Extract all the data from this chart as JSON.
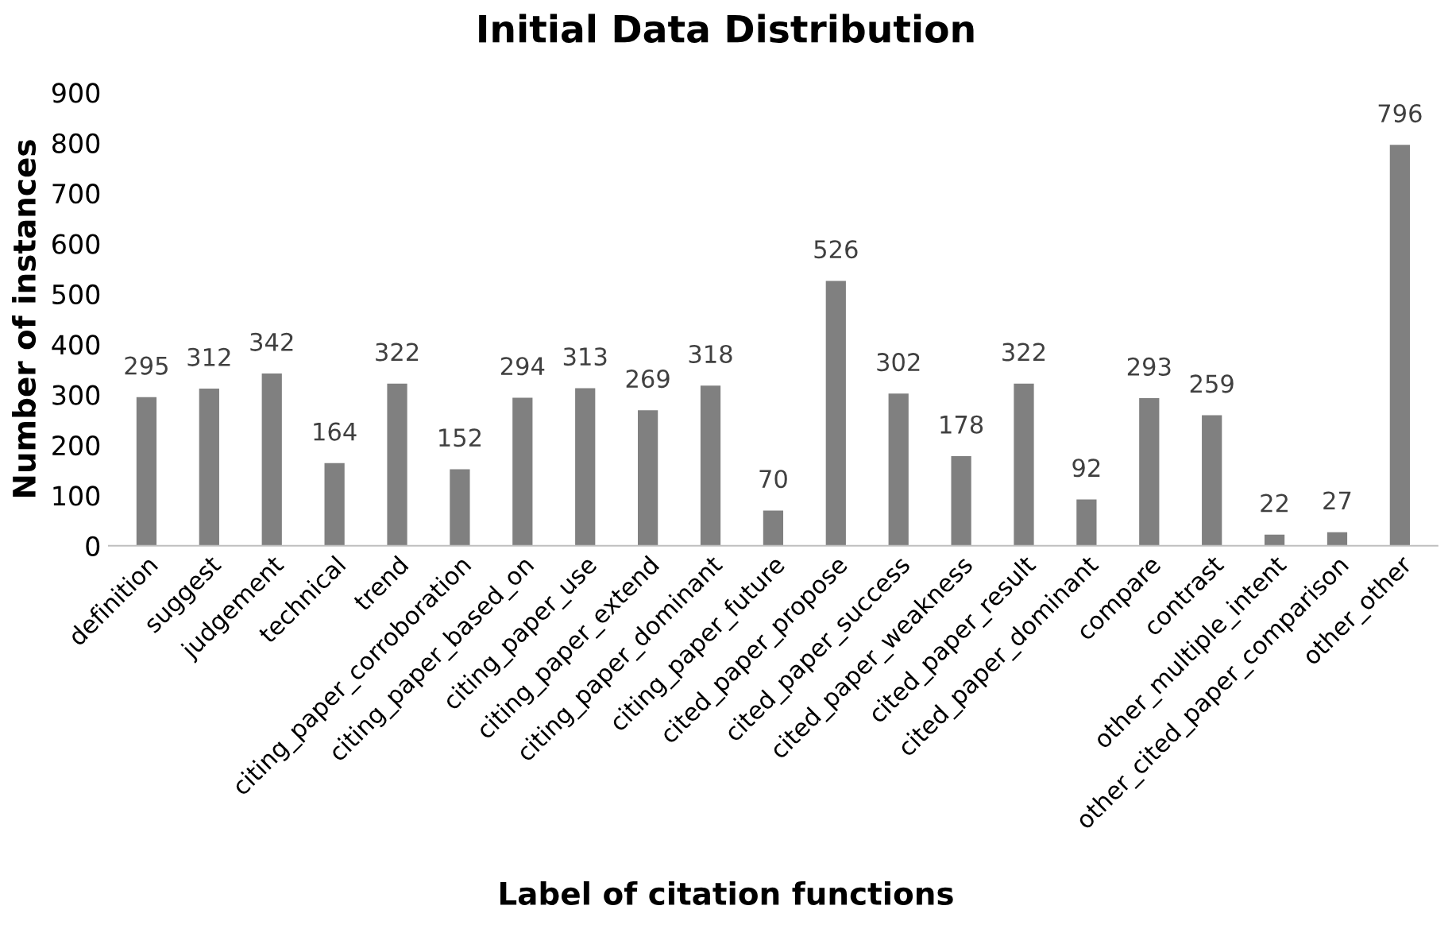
{
  "chart_data": {
    "type": "bar",
    "title": "Initial Data Distribution",
    "xlabel": "Label of citation functions",
    "ylabel": "Number of instances",
    "categories": [
      "definition",
      "suggest",
      "judgement",
      "technical",
      "trend",
      "citing_paper_corroboration",
      "citing_paper_based_on",
      "citing_paper_use",
      "citing_paper_extend",
      "citing_paper_dominant",
      "citing_paper_future",
      "cited_paper_propose",
      "cited_paper_success",
      "cited_paper_weakness",
      "cited_paper_result",
      "cited_paper_dominant",
      "compare",
      "contrast",
      "other_multiple_intent",
      "other_cited_paper_comparison",
      "other_other"
    ],
    "values": [
      295,
      312,
      342,
      164,
      322,
      152,
      294,
      313,
      269,
      318,
      70,
      526,
      302,
      178,
      322,
      92,
      293,
      259,
      22,
      27,
      796
    ],
    "color": "#808080",
    "ylim": [
      0,
      900
    ],
    "yticks": [
      0,
      100,
      200,
      300,
      400,
      500,
      600,
      700,
      800,
      900
    ],
    "grid": false,
    "legend": false,
    "data_labels": true
  }
}
